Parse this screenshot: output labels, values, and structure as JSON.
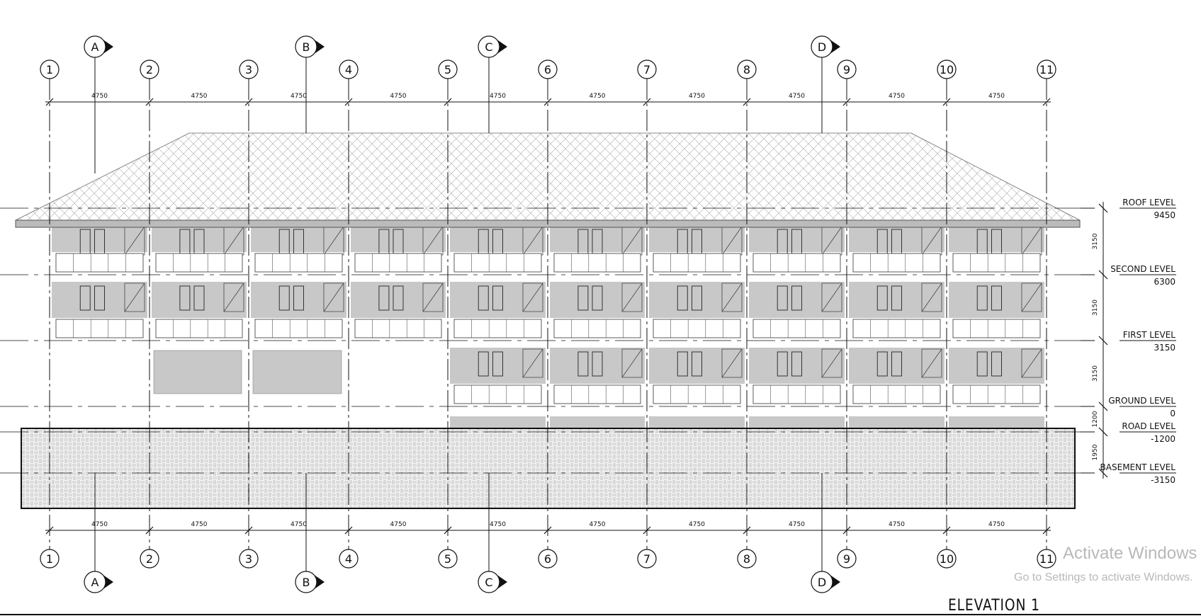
{
  "title": "ELEVATION 1",
  "grid_labels": [
    "1",
    "2",
    "3",
    "4",
    "5",
    "6",
    "7",
    "8",
    "9",
    "10",
    "11"
  ],
  "section_markers": [
    "A",
    "B",
    "C",
    "D"
  ],
  "bay_dimensions": [
    "4750",
    "4750",
    "4750",
    "4750",
    "4750",
    "4750",
    "4750",
    "4750",
    "4750",
    "4750"
  ],
  "levels": [
    {
      "name": "ROOF LEVEL",
      "elevation": "9450"
    },
    {
      "name": "SECOND LEVEL",
      "elevation": "6300"
    },
    {
      "name": "FIRST LEVEL",
      "elevation": "3150"
    },
    {
      "name": "GROUND LEVEL",
      "elevation": "0"
    },
    {
      "name": "ROAD LEVEL",
      "elevation": "-1200"
    },
    {
      "name": "BASEMENT LEVEL",
      "elevation": "-3150"
    }
  ],
  "level_dimensions": [
    "3150",
    "3150",
    "3150",
    "1200",
    "1950"
  ],
  "watermark": {
    "line1": "Activate Windows",
    "line2": "Go to Settings to activate Windows."
  },
  "colors": {
    "line": "#111111",
    "panel": "#c8c8c8",
    "hatch": "#9a9a9a"
  }
}
